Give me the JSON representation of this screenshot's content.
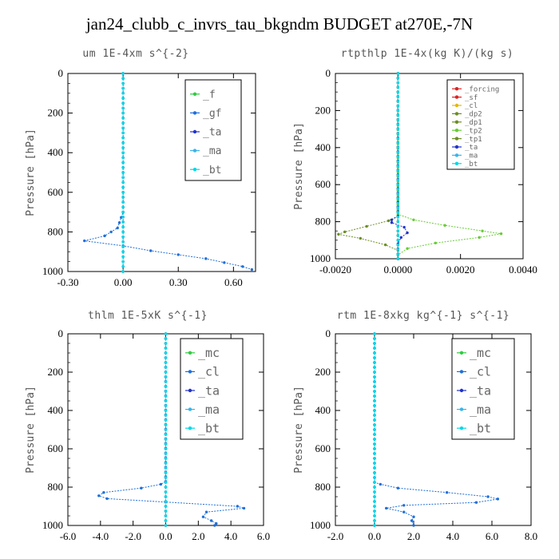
{
  "title": "jan24_clubb_c_invrs_tau_bkgndm  BUDGET at270E,-7N",
  "colors": {
    "green": "#2ecc40",
    "blue": "#1e6fd9",
    "navy": "#2233cc",
    "cyan": "#00d8e8",
    "red": "#dd2222",
    "yellow": "#e6b800",
    "olive": "#6b8e23",
    "lime": "#66cc33",
    "teal": "#3a8fb7",
    "lightblue": "#39b4ea"
  },
  "chart_data": [
    {
      "type": "line",
      "title": "um   1E-4xm s^{-2}",
      "ylabel": "Pressure [hPa]",
      "xlim": [
        -0.3,
        0.72
      ],
      "ylim": [
        1000,
        0
      ],
      "xticks": [
        -0.3,
        0.0,
        0.3,
        0.6
      ],
      "xtick_labels": [
        "-0.30",
        "0.00",
        "0.30",
        "0.60"
      ],
      "yticks": [
        0,
        200,
        400,
        600,
        800,
        1000
      ],
      "ytick_labels": [
        "0",
        "200",
        "400",
        "600",
        "800",
        "1000"
      ],
      "legend": {
        "position": "top-right",
        "font": 13,
        "entries": [
          "_f",
          "_gf",
          "_ta",
          "_ma",
          "_bt"
        ]
      },
      "series": [
        {
          "name": "_f",
          "color": "green",
          "points": [
            [
              0,
              0
            ],
            [
              0,
              100
            ],
            [
              0,
              200
            ],
            [
              0,
              300
            ],
            [
              0,
              400
            ],
            [
              0,
              500
            ],
            [
              0,
              600
            ],
            [
              0,
              700
            ],
            [
              0,
              800
            ],
            [
              0,
              900
            ],
            [
              0,
              1000
            ]
          ]
        },
        {
          "name": "_gf",
          "color": "blue",
          "points": [
            [
              0,
              0
            ],
            [
              0,
              700
            ],
            [
              -0.03,
              780
            ],
            [
              -0.1,
              820
            ],
            [
              -0.21,
              845
            ],
            [
              0.0,
              870
            ],
            [
              0.15,
              895
            ],
            [
              0.3,
              915
            ],
            [
              0.45,
              935
            ],
            [
              0.55,
              955
            ],
            [
              0.65,
              975
            ],
            [
              0.7,
              990
            ]
          ]
        },
        {
          "name": "_ta",
          "color": "navy",
          "points": [
            [
              0,
              0
            ],
            [
              0,
              1000
            ]
          ]
        },
        {
          "name": "_ma",
          "color": "lightblue",
          "points": [
            [
              0,
              0
            ],
            [
              0,
              1000
            ]
          ]
        },
        {
          "name": "_bt",
          "color": "cyan",
          "points": [
            [
              0,
              0
            ],
            [
              0,
              1000
            ]
          ]
        }
      ]
    },
    {
      "type": "line",
      "title": "rtpthlp   1E-4x(kg K)/(kg s)",
      "ylabel": "Pressure [hPa]",
      "xlim": [
        -0.002,
        0.004
      ],
      "ylim": [
        1000,
        0
      ],
      "xticks": [
        -0.002,
        0.0,
        0.002,
        0.004
      ],
      "xtick_labels": [
        "-0.0020",
        "0.0000",
        "0.0020",
        "0.0040"
      ],
      "yticks": [
        0,
        200,
        400,
        600,
        800,
        1000
      ],
      "ytick_labels": [
        "0",
        "200",
        "400",
        "600",
        "800",
        "1000"
      ],
      "legend": {
        "position": "top-right",
        "font": 9,
        "entries": [
          "_forcing",
          "_sf",
          "_cl",
          "_dp2",
          "_dp1",
          "_tp2",
          "_tp1",
          "_ta",
          "_ma",
          "_bt"
        ]
      },
      "series": [
        {
          "name": "_forcing",
          "color": "red",
          "points": [
            [
              0,
              0
            ],
            [
              0,
              1000
            ]
          ]
        },
        {
          "name": "_sf",
          "color": "red",
          "points": [
            [
              0,
              0
            ],
            [
              0,
              1000
            ]
          ]
        },
        {
          "name": "_cl",
          "color": "yellow",
          "points": [
            [
              0,
              0
            ],
            [
              0,
              1000
            ]
          ]
        },
        {
          "name": "_dp2",
          "color": "olive",
          "points": [
            [
              0,
              0
            ],
            [
              0,
              1000
            ]
          ]
        },
        {
          "name": "_dp1",
          "color": "olive",
          "points": [
            [
              0,
              0
            ],
            [
              0,
              1000
            ]
          ]
        },
        {
          "name": "_tp2",
          "color": "lime",
          "points": [
            [
              0,
              0
            ],
            [
              0,
              760
            ],
            [
              0.0005,
              790
            ],
            [
              0.0015,
              820
            ],
            [
              0.0027,
              850
            ],
            [
              0.0033,
              865
            ],
            [
              0.0026,
              885
            ],
            [
              0.0012,
              915
            ],
            [
              0.0003,
              945
            ],
            [
              0,
              980
            ],
            [
              0,
              1000
            ]
          ]
        },
        {
          "name": "_tp1",
          "color": "olive",
          "points": [
            [
              0,
              0
            ],
            [
              0,
              770
            ],
            [
              -0.0003,
              795
            ],
            [
              -0.001,
              825
            ],
            [
              -0.0017,
              855
            ],
            [
              -0.0019,
              868
            ],
            [
              -0.0012,
              890
            ],
            [
              -0.0004,
              925
            ],
            [
              0,
              955
            ],
            [
              0,
              1000
            ]
          ]
        },
        {
          "name": "_ta",
          "color": "navy",
          "points": [
            [
              0,
              0
            ],
            [
              0,
              770
            ],
            [
              -0.0002,
              790
            ],
            [
              -0.0002,
              805
            ],
            [
              0.0002,
              830
            ],
            [
              0.0003,
              860
            ],
            [
              0.0001,
              885
            ],
            [
              0,
              920
            ],
            [
              0,
              1000
            ]
          ]
        },
        {
          "name": "_ma",
          "color": "lightblue",
          "points": [
            [
              0,
              0
            ],
            [
              0,
              1000
            ]
          ]
        },
        {
          "name": "_bt",
          "color": "cyan",
          "points": [
            [
              0,
              0
            ],
            [
              0,
              1000
            ]
          ]
        }
      ]
    },
    {
      "type": "line",
      "title": "thlm   1E-5xK s^{-1}",
      "ylabel": "Pressure [hPa]",
      "xlim": [
        -6.0,
        6.0
      ],
      "ylim": [
        1000,
        0
      ],
      "xticks": [
        -6,
        -4,
        -2,
        0,
        2,
        4,
        6
      ],
      "xtick_labels": [
        "-6.0",
        "-4.0",
        "-2.0",
        "0.0",
        "2.0",
        "4.0",
        "6.0"
      ],
      "yticks": [
        0,
        200,
        400,
        600,
        800,
        1000
      ],
      "ytick_labels": [
        "0",
        "200",
        "400",
        "600",
        "800",
        "1000"
      ],
      "legend": {
        "position": "top-right",
        "font": 15,
        "entries": [
          "_mc",
          "_cl",
          "_ta",
          "_ma",
          "_bt"
        ]
      },
      "series": [
        {
          "name": "_mc",
          "color": "green",
          "points": [
            [
              0,
              0
            ],
            [
              0,
              1000
            ]
          ]
        },
        {
          "name": "_cl",
          "color": "blue",
          "points": [
            [
              0,
              0
            ],
            [
              0,
              770
            ],
            [
              -0.3,
              785
            ],
            [
              -1.5,
              805
            ],
            [
              -3.8,
              828
            ],
            [
              -4.1,
              845
            ],
            [
              -3.6,
              860
            ],
            [
              0,
              878
            ],
            [
              4.4,
              900
            ],
            [
              4.8,
              910
            ],
            [
              2.5,
              930
            ],
            [
              2.3,
              955
            ],
            [
              2.8,
              975
            ],
            [
              3.1,
              990
            ],
            [
              3.0,
              1000
            ]
          ]
        },
        {
          "name": "_ta",
          "color": "navy",
          "points": [
            [
              0,
              0
            ],
            [
              0,
              1000
            ]
          ]
        },
        {
          "name": "_ma",
          "color": "lightblue",
          "points": [
            [
              0,
              0
            ],
            [
              0,
              1000
            ]
          ]
        },
        {
          "name": "_bt",
          "color": "cyan",
          "points": [
            [
              0,
              0
            ],
            [
              0,
              1000
            ]
          ]
        }
      ]
    },
    {
      "type": "line",
      "title": "rtm   1E-8xkg kg^{-1} s^{-1}",
      "ylabel": "Pressure [hPa]",
      "xlim": [
        -2.0,
        8.0
      ],
      "ylim": [
        1000,
        0
      ],
      "xticks": [
        -2,
        0,
        2,
        4,
        6,
        8
      ],
      "xtick_labels": [
        "-2.0",
        "0.0",
        "2.0",
        "4.0",
        "6.0",
        "8.0"
      ],
      "yticks": [
        0,
        200,
        400,
        600,
        800,
        1000
      ],
      "ytick_labels": [
        "0",
        "200",
        "400",
        "600",
        "800",
        "1000"
      ],
      "legend": {
        "position": "top-right",
        "font": 15,
        "entries": [
          "_mc",
          "_cl",
          "_ta",
          "_ma",
          "_bt"
        ]
      },
      "series": [
        {
          "name": "_mc",
          "color": "green",
          "points": [
            [
              0,
              0
            ],
            [
              0,
              1000
            ]
          ]
        },
        {
          "name": "_cl",
          "color": "blue",
          "points": [
            [
              0,
              0
            ],
            [
              0,
              775
            ],
            [
              0.3,
              785
            ],
            [
              1.2,
              805
            ],
            [
              3.7,
              828
            ],
            [
              5.8,
              850
            ],
            [
              6.3,
              862
            ],
            [
              5.2,
              880
            ],
            [
              1.5,
              895
            ],
            [
              0.6,
              910
            ],
            [
              1.5,
              930
            ],
            [
              2.0,
              955
            ],
            [
              1.9,
              975
            ],
            [
              2.0,
              1000
            ]
          ]
        },
        {
          "name": "_ta",
          "color": "navy",
          "points": [
            [
              0,
              0
            ],
            [
              0,
              1000
            ]
          ]
        },
        {
          "name": "_ma",
          "color": "lightblue",
          "points": [
            [
              0,
              0
            ],
            [
              0,
              1000
            ]
          ]
        },
        {
          "name": "_bt",
          "color": "cyan",
          "points": [
            [
              0,
              0
            ],
            [
              0,
              1000
            ]
          ]
        }
      ]
    }
  ]
}
